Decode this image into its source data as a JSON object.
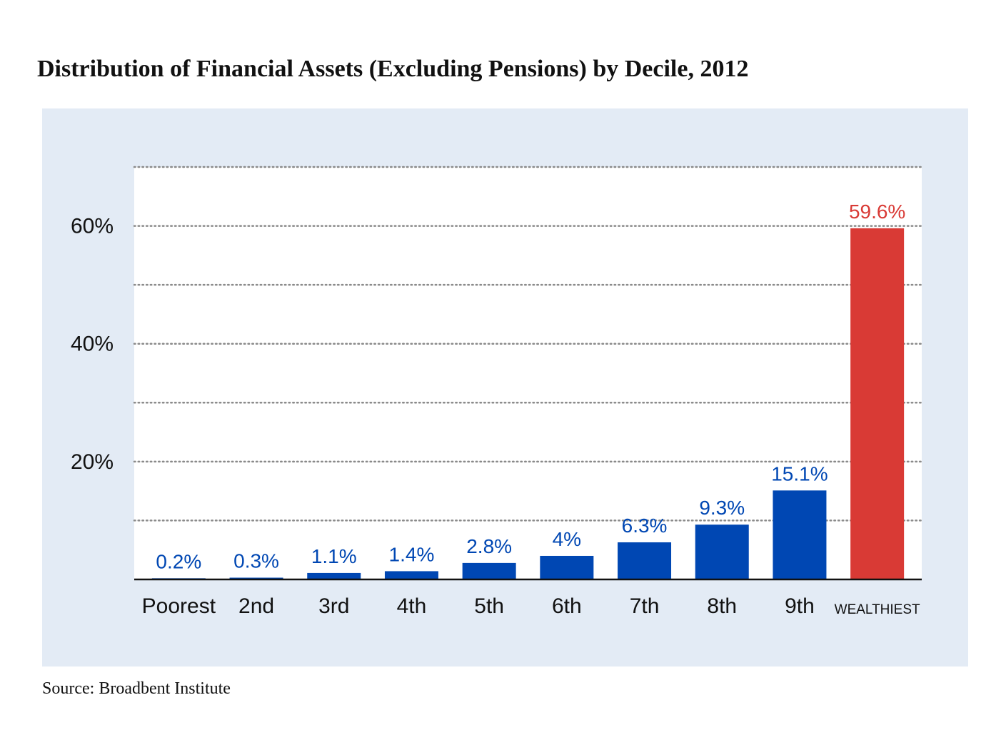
{
  "title": "Distribution of Financial Assets (Excluding Pensions) by Decile, 2012",
  "source": "Source: Broadbent Institute",
  "colors": {
    "panel_background": "#e3ebf5",
    "plot_background": "#ffffff",
    "bar_default": "#0047b3",
    "bar_highlight": "#d93a35",
    "gridline": "#8a8a8a",
    "axis": "#111111"
  },
  "chart_data": {
    "type": "bar",
    "categories": [
      "Poorest",
      "2nd",
      "3rd",
      "4th",
      "5th",
      "6th",
      "7th",
      "8th",
      "9th",
      "WEALTHIEST"
    ],
    "values": [
      0.2,
      0.3,
      1.1,
      1.4,
      2.8,
      4,
      6.3,
      9.3,
      15.1,
      59.6
    ],
    "data_labels": [
      "0.2%",
      "0.3%",
      "1.1%",
      "1.4%",
      "2.8%",
      "4%",
      "6.3%",
      "9.3%",
      "15.1%",
      "59.6%"
    ],
    "highlight_category": "WEALTHIEST",
    "ylim": [
      0,
      70
    ],
    "yticks": [
      20,
      40,
      60
    ],
    "ytick_labels": [
      "20%",
      "40%",
      "60%"
    ],
    "gridlines": [
      10,
      20,
      30,
      40,
      50,
      60,
      70
    ],
    "grid": true,
    "grid_style": "dotted"
  }
}
